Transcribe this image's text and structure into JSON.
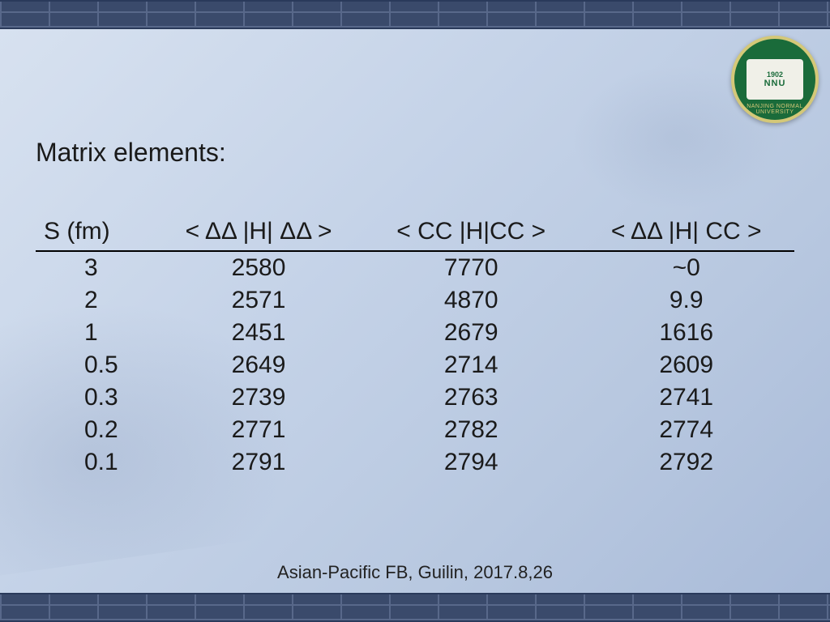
{
  "slide": {
    "title": "Matrix elements:",
    "footer": "Asian-Pacific FB, Guilin, 2017.8,26"
  },
  "logo": {
    "banner": "1902",
    "abbrev": "NNU",
    "ring": "NANJING NORMAL UNIVERSITY"
  },
  "table": {
    "type": "table",
    "columns": [
      "S (fm)",
      "< ΔΔ |H| ΔΔ >",
      "< CC |H|CC >",
      "< ΔΔ |H| CC >"
    ],
    "rows": [
      [
        "3",
        "2580",
        "7770",
        "~0"
      ],
      [
        "2",
        "2571",
        "4870",
        "9.9"
      ],
      [
        "1",
        "2451",
        "2679",
        "1616"
      ],
      [
        "0.5",
        "2649",
        "2714",
        "2609"
      ],
      [
        "0.3",
        "2739",
        "2763",
        "2741"
      ],
      [
        "0.2",
        "2771",
        "2782",
        "2774"
      ],
      [
        "0.1",
        "2791",
        "2794",
        "2792"
      ]
    ],
    "header_fontsize": 30,
    "cell_fontsize": 30,
    "text_color": "#1a1a1a",
    "rule_color": "#000000",
    "col_align": [
      "left",
      "center",
      "center",
      "center"
    ]
  },
  "style": {
    "background_gradient": [
      "#d8e2f0",
      "#c5d3e8",
      "#b8c8e0",
      "#a8bad8"
    ],
    "brick_color": "#3a4a6b",
    "brick_line_color": "#58688a",
    "logo_bg": "#1a6b3a",
    "logo_border": "#d4c878",
    "title_fontsize": 32,
    "footer_fontsize": 22,
    "font_family": "Arial"
  }
}
